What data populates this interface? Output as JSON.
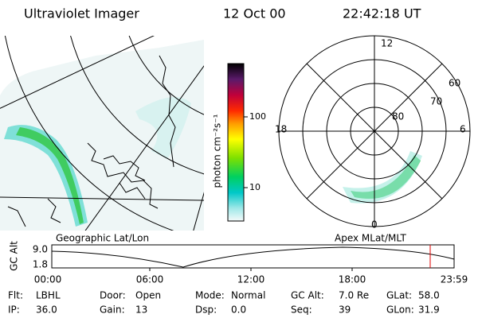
{
  "header": {
    "title": "Ultraviolet Imager",
    "date": "12 Oct 00",
    "time": "22:42:18 UT"
  },
  "colorbar": {
    "label": "photon cm⁻²s⁻¹",
    "ticks": [
      "100",
      "10"
    ]
  },
  "polar": {
    "mlt_labels": [
      "12",
      "18",
      "6",
      "0"
    ],
    "lat_labels": [
      "60",
      "70",
      "80"
    ]
  },
  "panels": {
    "left_caption": "Geographic Lat/Lon",
    "right_caption": "Apex MLat/MLT"
  },
  "timeline": {
    "axis_label": "GC Alt",
    "y_labels": [
      "9.0",
      "1.8"
    ],
    "x_labels": [
      "00:00",
      "06:00",
      "12:00",
      "18:00",
      "23:59"
    ]
  },
  "info": {
    "rows": [
      [
        [
          "Flt:",
          "LBHL"
        ],
        [
          "Door:",
          "Open"
        ],
        [
          "Mode:",
          "Normal"
        ],
        [
          "GC Alt:",
          "7.0 Re"
        ],
        [
          "GLat:",
          "58.0"
        ]
      ],
      [
        [
          "IP:",
          "36.0"
        ],
        [
          "Gain:",
          "13"
        ],
        [
          "Dsp:",
          "0.0"
        ],
        [
          "Seq:",
          "39"
        ],
        [
          "GLon:",
          "31.9"
        ]
      ]
    ]
  }
}
